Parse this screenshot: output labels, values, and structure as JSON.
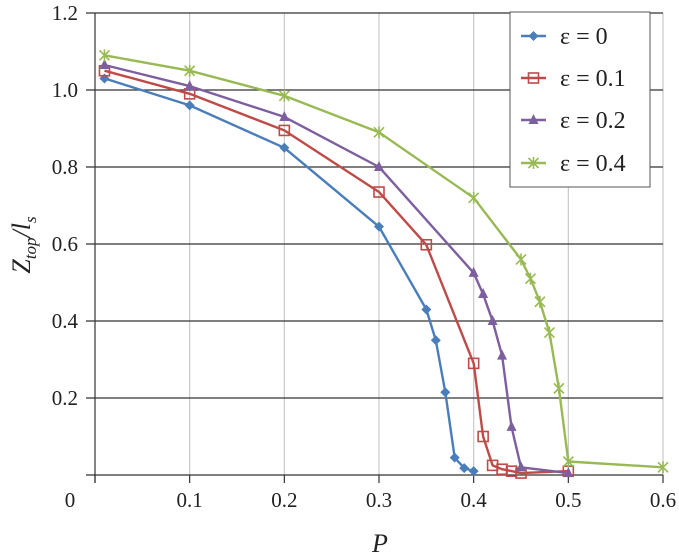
{
  "chart_data": {
    "type": "line",
    "title": "",
    "xlabel": "P",
    "ylabel": "Z_top / l_s",
    "xlim": [
      0,
      0.6
    ],
    "ylim": [
      0,
      1.2
    ],
    "x_ticks": [
      "0",
      "0.1",
      "0.2",
      "0.3",
      "0.4",
      "0.5",
      "0.6"
    ],
    "y_ticks": [
      "0.2",
      "0.4",
      "0.6",
      "0.8",
      "1.0",
      "1.2"
    ],
    "grid": true,
    "legend_position": "upper right",
    "series": [
      {
        "name": "ε = 0",
        "color": "#4a7ebb",
        "marker": "diamond",
        "x": [
          0.01,
          0.1,
          0.2,
          0.3,
          0.35,
          0.36,
          0.37,
          0.38,
          0.39,
          0.4
        ],
        "y": [
          1.03,
          0.96,
          0.85,
          0.645,
          0.43,
          0.35,
          0.215,
          0.045,
          0.018,
          0.01
        ]
      },
      {
        "name": "ε = 0.1",
        "color": "#be4b48",
        "marker": "square-open",
        "x": [
          0.01,
          0.1,
          0.2,
          0.3,
          0.35,
          0.4,
          0.41,
          0.42,
          0.43,
          0.44,
          0.45,
          0.5
        ],
        "y": [
          1.05,
          0.99,
          0.895,
          0.735,
          0.598,
          0.29,
          0.1,
          0.025,
          0.015,
          0.01,
          0.005,
          0.01
        ]
      },
      {
        "name": "ε = 0.2",
        "color": "#7d5fa0",
        "marker": "triangle",
        "x": [
          0.01,
          0.1,
          0.2,
          0.3,
          0.4,
          0.41,
          0.42,
          0.43,
          0.44,
          0.45,
          0.5
        ],
        "y": [
          1.065,
          1.01,
          0.93,
          0.8,
          0.525,
          0.47,
          0.4,
          0.31,
          0.125,
          0.02,
          0.005
        ]
      },
      {
        "name": "ε = 0.4",
        "color": "#98b954",
        "marker": "star",
        "x": [
          0.01,
          0.1,
          0.2,
          0.3,
          0.4,
          0.45,
          0.46,
          0.47,
          0.48,
          0.49,
          0.5,
          0.6
        ],
        "y": [
          1.09,
          1.05,
          0.985,
          0.89,
          0.72,
          0.56,
          0.51,
          0.45,
          0.37,
          0.225,
          0.035,
          0.02
        ]
      }
    ]
  },
  "labels": {
    "xlabel": "P",
    "ylabel_main": "Z",
    "ylabel_sub1": "top",
    "ylabel_slash": "/",
    "ylabel_l": "l",
    "ylabel_sub2": "s",
    "legend": [
      "ε = 0",
      "ε = 0.1",
      "ε = 0.2",
      "ε = 0.4"
    ]
  }
}
